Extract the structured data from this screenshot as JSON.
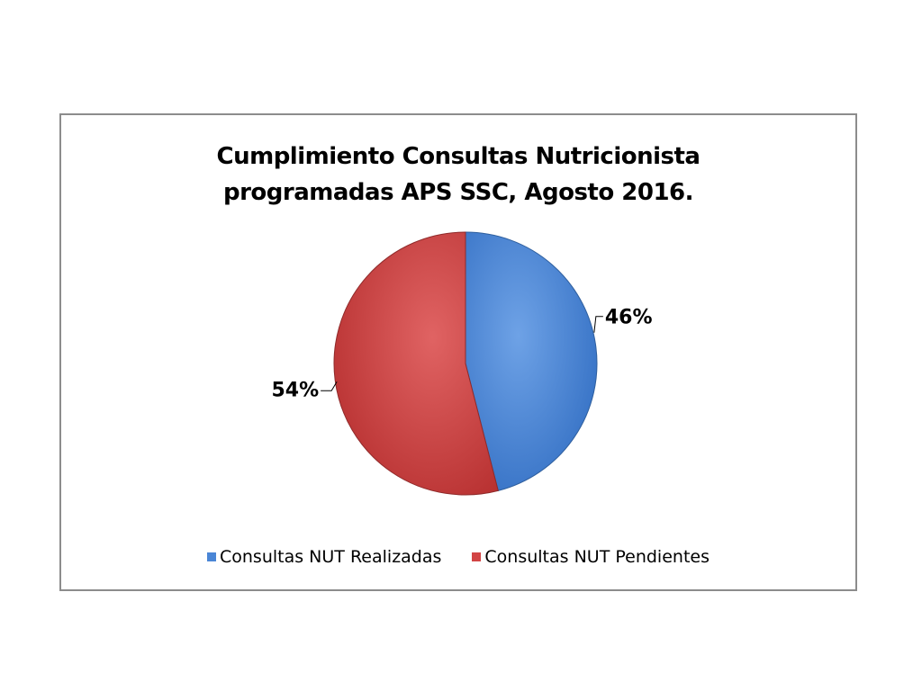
{
  "chart_data": {
    "type": "pie",
    "title_lines": [
      "Cumplimiento Consultas Nutricionista",
      "programadas APS SSC, Agosto 2016."
    ],
    "categories": [
      "Consultas NUT Realizadas",
      "Consultas NUT Pendientes"
    ],
    "values": [
      46,
      54
    ],
    "data_labels": [
      "46%",
      "54%"
    ],
    "colors": [
      "#4a86d6",
      "#d24444"
    ],
    "legend_position": "bottom"
  }
}
